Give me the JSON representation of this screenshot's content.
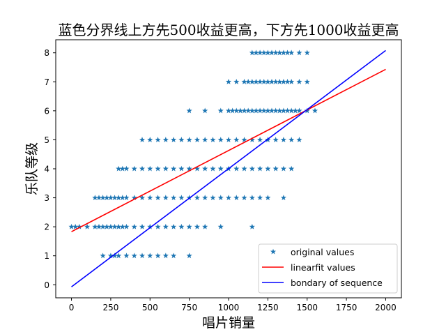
{
  "chart_data": {
    "type": "scatter",
    "title": "蓝色分界线上方先500收益更高，下方先1000收益更高",
    "xlabel": "唱片销量",
    "ylabel": "乐队等级",
    "xlim": [
      -100,
      2100
    ],
    "ylim": [
      -0.45,
      8.45
    ],
    "xticks": [
      0,
      250,
      500,
      750,
      1000,
      1250,
      1500,
      1750,
      2000
    ],
    "yticks": [
      0,
      1,
      2,
      3,
      4,
      5,
      6,
      7,
      8
    ],
    "grid": false,
    "legend_position": "lower-right",
    "colors": {
      "points": "#1f77b4",
      "linearfit": "#ff0000",
      "boundary": "#0000ff"
    },
    "series": [
      {
        "name": "original values",
        "kind": "scatter",
        "marker": "star",
        "rows": [
          {
            "y": 8,
            "x": [
              1150,
              1175,
              1200,
              1225,
              1250,
              1275,
              1300,
              1325,
              1350,
              1375,
              1400,
              1450,
              1500
            ]
          },
          {
            "y": 7,
            "x": [
              1000,
              1050,
              1100,
              1125,
              1150,
              1175,
              1200,
              1225,
              1250,
              1275,
              1300,
              1325,
              1350,
              1375,
              1400,
              1450,
              1500
            ]
          },
          {
            "y": 6,
            "x": [
              750,
              850,
              950,
              1000,
              1025,
              1050,
              1075,
              1100,
              1125,
              1150,
              1175,
              1200,
              1225,
              1250,
              1275,
              1300,
              1325,
              1350,
              1375,
              1400,
              1425,
              1450,
              1500,
              1550
            ]
          },
          {
            "y": 5,
            "x": [
              450,
              500,
              550,
              600,
              650,
              700,
              750,
              800,
              850,
              900,
              950,
              1000,
              1050,
              1100,
              1150,
              1200,
              1250,
              1300,
              1350,
              1400,
              1450
            ]
          },
          {
            "y": 4,
            "x": [
              300,
              325,
              350,
              400,
              450,
              500,
              550,
              600,
              650,
              700,
              750,
              800,
              850,
              900,
              950,
              1000,
              1050,
              1100,
              1150,
              1200,
              1250,
              1300,
              1350,
              1400
            ]
          },
          {
            "y": 3,
            "x": [
              150,
              175,
              200,
              225,
              250,
              275,
              300,
              325,
              350,
              400,
              450,
              500,
              550,
              600,
              650,
              700,
              750,
              800,
              850,
              900,
              950,
              1000,
              1050,
              1100,
              1150,
              1200,
              1250,
              1350
            ]
          },
          {
            "y": 2,
            "x": [
              0,
              25,
              50,
              100,
              150,
              175,
              200,
              225,
              250,
              275,
              300,
              325,
              350,
              400,
              450,
              500,
              550,
              600,
              650,
              700,
              750,
              800,
              850,
              950,
              1150
            ]
          },
          {
            "y": 1,
            "x": [
              200,
              250,
              275,
              300,
              350,
              400,
              450,
              500,
              550,
              600,
              650,
              750
            ]
          }
        ]
      },
      {
        "name": "linearfit values",
        "kind": "line",
        "x": [
          0,
          2000
        ],
        "y": [
          1.83,
          7.43
        ]
      },
      {
        "name": "bondary of sequence",
        "kind": "line",
        "x": [
          0,
          2000
        ],
        "y": [
          -0.07,
          8.08
        ]
      }
    ]
  }
}
